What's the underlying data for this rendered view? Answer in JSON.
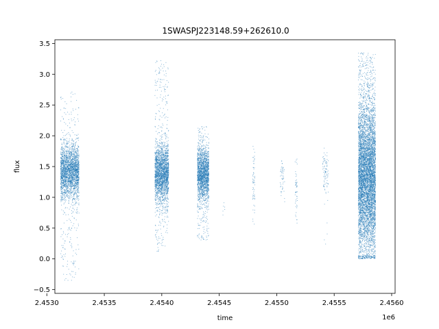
{
  "chart_data": {
    "type": "scatter",
    "title": "1SWASPJ223148.59+262610.0",
    "xlabel": "time",
    "ylabel": "flux",
    "x_offset_label": "1e6",
    "xlim": [
      2.45307,
      2.45603
    ],
    "ylim": [
      -0.56,
      3.56
    ],
    "xticks": [
      2.453,
      2.4535,
      2.454,
      2.4545,
      2.455,
      2.4555,
      2.456
    ],
    "xtick_labels": [
      "2.4530",
      "2.4535",
      "2.4540",
      "2.4545",
      "2.4550",
      "2.4555",
      "2.4560"
    ],
    "yticks": [
      -0.5,
      0.0,
      0.5,
      1.0,
      1.5,
      2.0,
      2.5,
      3.0,
      3.5
    ],
    "ytick_labels": [
      "−0.5",
      "0.0",
      "0.5",
      "1.0",
      "1.5",
      "2.0",
      "2.5",
      "3.0",
      "3.5"
    ],
    "grid": false,
    "marker_color": "#1f77b4",
    "series": [
      {
        "clusters": [
          {
            "x_range": [
              2.45312,
              2.45328
            ],
            "y_center": 1.42,
            "y_spread": 0.22,
            "y_min": -0.35,
            "y_max": 2.72,
            "density": 2600
          },
          {
            "x_range": [
              2.45394,
              2.45406
            ],
            "y_center": 1.38,
            "y_spread": 0.24,
            "y_min": 0.12,
            "y_max": 3.22,
            "density": 2400
          },
          {
            "x_range": [
              2.45431,
              2.45441
            ],
            "y_center": 1.38,
            "y_spread": 0.22,
            "y_min": 0.3,
            "y_max": 2.15,
            "density": 2000
          },
          {
            "x_range": [
              2.45453,
              2.45455
            ],
            "y_center": 0.88,
            "y_spread": 0.12,
            "y_min": 0.7,
            "y_max": 1.0,
            "density": 6
          },
          {
            "x_range": [
              2.45479,
              2.45481
            ],
            "y_center": 1.25,
            "y_spread": 0.25,
            "y_min": 0.45,
            "y_max": 2.02,
            "density": 60
          },
          {
            "x_range": [
              2.45503,
              2.45507
            ],
            "y_center": 1.32,
            "y_spread": 0.15,
            "y_min": 0.85,
            "y_max": 1.6,
            "density": 50
          },
          {
            "x_range": [
              2.45516,
              2.45518
            ],
            "y_center": 1.15,
            "y_spread": 0.25,
            "y_min": 0.55,
            "y_max": 1.65,
            "density": 50
          },
          {
            "x_range": [
              2.4554,
              2.45545
            ],
            "y_center": 1.38,
            "y_spread": 0.18,
            "y_min": 0.22,
            "y_max": 1.95,
            "density": 90
          },
          {
            "x_range": [
              2.45571,
              2.45586
            ],
            "y_center": 1.3,
            "y_spread": 0.6,
            "y_min": 0.0,
            "y_max": 3.35,
            "density": 6500
          }
        ]
      }
    ]
  }
}
